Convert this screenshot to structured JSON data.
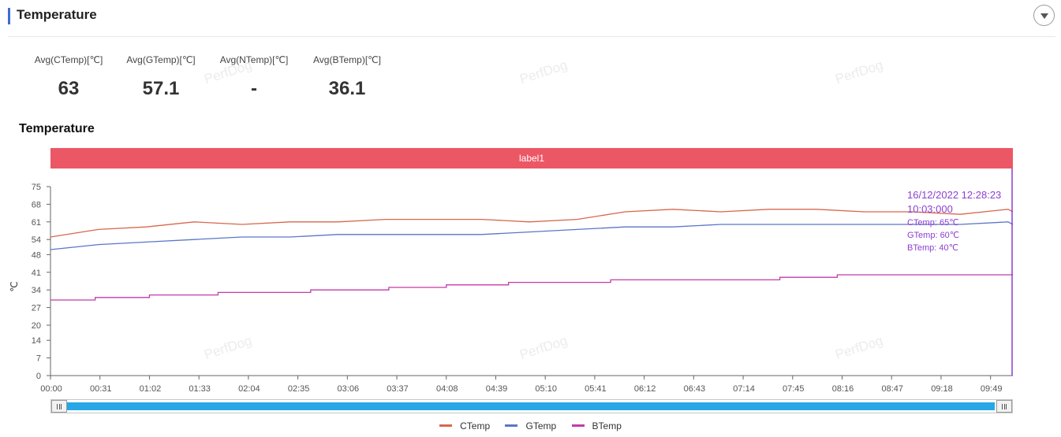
{
  "header": {
    "title": "Temperature",
    "collapse_icon": "chevron-down-icon"
  },
  "stats": [
    {
      "label": "Avg(CTemp)[℃]",
      "value": "63"
    },
    {
      "label": "Avg(GTemp)[℃]",
      "value": "57.1"
    },
    {
      "label": "Avg(NTemp)[℃]",
      "value": "-"
    },
    {
      "label": "Avg(BTemp)[℃]",
      "value": "36.1"
    }
  ],
  "watermark": "PerfDog",
  "chart_title": "Temperature",
  "label_bar": "label1",
  "tooltip": {
    "date": "16/12/2022 12:28:23",
    "time": "10:03:000",
    "lines": [
      "CTemp: 65℃",
      "GTemp: 60℃",
      "BTemp: 40℃"
    ]
  },
  "colors": {
    "CTemp": "#d8674d",
    "GTemp": "#5b76c8",
    "BTemp": "#c43ba8",
    "label_bar": "#ec5766",
    "cursor": "#8a3fd1",
    "scrollbar": "#27a7e6"
  },
  "chart_data": {
    "type": "line",
    "title": "Temperature",
    "ylabel": "℃",
    "xlabel": "",
    "ylim": [
      0,
      75
    ],
    "yticks": [
      0,
      7,
      14,
      20,
      27,
      34,
      41,
      48,
      54,
      61,
      68,
      75
    ],
    "xlim": [
      "00:00",
      "10:03"
    ],
    "xticks": [
      "00:00",
      "00:31",
      "01:02",
      "01:33",
      "02:04",
      "02:35",
      "03:06",
      "03:37",
      "04:08",
      "04:39",
      "05:10",
      "05:41",
      "06:12",
      "06:43",
      "07:14",
      "07:45",
      "08:16",
      "08:47",
      "09:18",
      "09:49"
    ],
    "grid": false,
    "legend": "bottom-center",
    "series": [
      {
        "name": "CTemp",
        "x": [
          "00:00",
          "00:30",
          "01:00",
          "01:30",
          "02:00",
          "02:30",
          "03:00",
          "03:30",
          "04:00",
          "04:30",
          "05:00",
          "05:30",
          "06:00",
          "06:30",
          "07:00",
          "07:30",
          "08:00",
          "08:30",
          "09:00",
          "09:30",
          "10:00",
          "10:03"
        ],
        "y": [
          55,
          58,
          59,
          61,
          60,
          61,
          61,
          62,
          62,
          62,
          61,
          62,
          65,
          66,
          65,
          66,
          66,
          65,
          65,
          64,
          66,
          65
        ]
      },
      {
        "name": "GTemp",
        "x": [
          "00:00",
          "00:30",
          "01:00",
          "01:30",
          "02:00",
          "02:30",
          "03:00",
          "03:30",
          "04:00",
          "04:30",
          "05:00",
          "05:30",
          "06:00",
          "06:30",
          "07:00",
          "07:30",
          "08:00",
          "08:30",
          "09:00",
          "09:30",
          "10:00",
          "10:03"
        ],
        "y": [
          50,
          52,
          53,
          54,
          55,
          55,
          56,
          56,
          56,
          56,
          57,
          58,
          59,
          59,
          60,
          60,
          60,
          60,
          60,
          60,
          61,
          60
        ]
      },
      {
        "name": "BTemp",
        "x": [
          "00:00",
          "00:28",
          "01:02",
          "01:45",
          "02:43",
          "03:32",
          "04:08",
          "04:47",
          "05:51",
          "07:37",
          "08:13",
          "10:03"
        ],
        "y": [
          30,
          31,
          32,
          33,
          34,
          35,
          36,
          37,
          38,
          39,
          40,
          40
        ]
      }
    ]
  }
}
